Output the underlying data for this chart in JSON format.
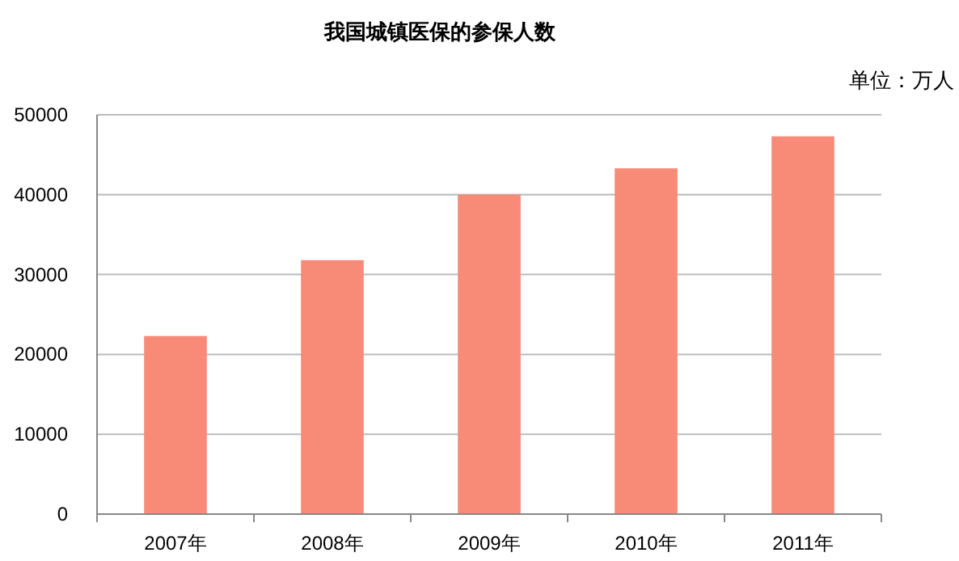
{
  "chart_data": {
    "type": "bar",
    "title": "我国城镇医保的参保人数",
    "annotations": [
      "单位：万人"
    ],
    "categories": [
      "2007年",
      "2008年",
      "2009年",
      "2010年",
      "2011年"
    ],
    "values": [
      22300,
      31800,
      40000,
      43300,
      47300
    ],
    "color": "#f78b78",
    "ylim": [
      0,
      50000
    ],
    "yticks": [
      0,
      10000,
      20000,
      30000,
      40000,
      50000
    ],
    "grid": "y"
  }
}
